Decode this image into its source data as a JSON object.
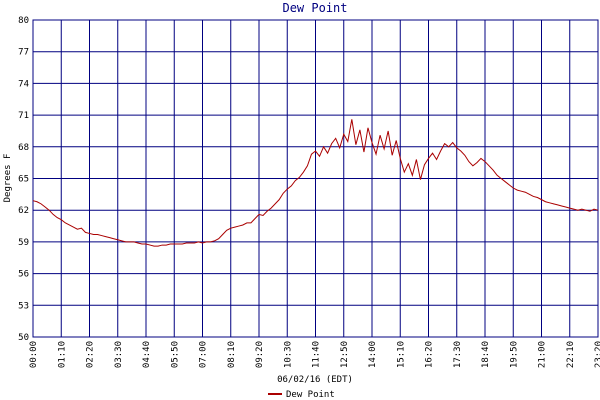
{
  "chart_data": {
    "type": "line",
    "title": "Dew Point",
    "xlabel": "06/02/16 (EDT)",
    "ylabel": "Degrees F",
    "x": [
      0,
      10,
      20,
      30,
      40,
      50,
      60,
      70,
      80,
      90,
      100,
      110,
      120,
      130,
      140,
      150,
      160,
      170,
      180,
      190,
      200,
      210,
      220,
      230,
      240,
      250,
      260,
      270,
      280,
      290,
      300,
      310,
      320,
      330,
      340,
      350,
      360,
      370,
      380,
      390,
      400,
      410,
      420,
      430,
      440,
      450,
      460,
      470,
      480,
      490,
      500,
      510,
      520,
      530,
      540,
      550,
      560,
      570,
      580,
      590,
      600,
      610,
      620,
      630,
      640,
      650,
      660,
      670,
      680,
      690,
      700,
      710,
      720,
      730,
      740,
      750,
      760,
      770,
      780,
      790,
      800,
      810,
      820,
      830,
      840,
      850,
      860,
      870,
      880,
      890,
      900,
      910,
      920,
      930,
      940,
      950,
      960,
      970,
      980,
      990,
      1000,
      1010,
      1020,
      1030,
      1040,
      1050,
      1060,
      1070,
      1080,
      1090,
      1100,
      1110,
      1120,
      1130,
      1140,
      1150,
      1160,
      1170,
      1180,
      1190,
      1200,
      1210,
      1220,
      1230,
      1240,
      1250,
      1260,
      1270,
      1280,
      1290,
      1300,
      1310,
      1320,
      1330,
      1340,
      1350,
      1360,
      1370,
      1380,
      1390,
      1400
    ],
    "series": [
      {
        "name": "Dew Point",
        "color": "#aa0000",
        "values": [
          62.9,
          62.8,
          62.6,
          62.3,
          62.0,
          61.6,
          61.3,
          61.1,
          60.8,
          60.6,
          60.4,
          60.2,
          60.3,
          59.9,
          59.8,
          59.7,
          59.7,
          59.6,
          59.5,
          59.4,
          59.3,
          59.2,
          59.1,
          59.0,
          59.0,
          59.0,
          58.9,
          58.8,
          58.8,
          58.7,
          58.6,
          58.6,
          58.7,
          58.7,
          58.8,
          58.8,
          58.8,
          58.8,
          58.9,
          58.9,
          58.9,
          59.0,
          58.9,
          59.0,
          59.0,
          59.1,
          59.3,
          59.7,
          60.1,
          60.3,
          60.4,
          60.5,
          60.6,
          60.8,
          60.8,
          61.2,
          61.6,
          61.5,
          61.9,
          62.2,
          62.6,
          63.0,
          63.6,
          64.0,
          64.3,
          64.8,
          65.1,
          65.6,
          66.2,
          67.3,
          67.6,
          67.1,
          68.0,
          67.4,
          68.3,
          68.8,
          67.9,
          69.2,
          68.5,
          70.6,
          68.2,
          69.6,
          67.5,
          69.8,
          68.4,
          67.3,
          69.1,
          67.8,
          69.5,
          67.2,
          68.6,
          66.9,
          65.6,
          66.4,
          65.3,
          66.8,
          64.9,
          66.3,
          66.9,
          67.4,
          66.8,
          67.6,
          68.3,
          68.0,
          68.4,
          67.9,
          67.6,
          67.2,
          66.6,
          66.2,
          66.5,
          66.9,
          66.6,
          66.2,
          65.8,
          65.3,
          65.0,
          64.7,
          64.4,
          64.1,
          63.9,
          63.8,
          63.7,
          63.5,
          63.3,
          63.2,
          63.0,
          62.8,
          62.7,
          62.6,
          62.5,
          62.4,
          62.3,
          62.2,
          62.1,
          62.0,
          62.1,
          62.0,
          61.9,
          62.1,
          62.0
        ]
      }
    ],
    "xlim": [
      0,
      1400
    ],
    "xticks": [
      {
        "value": 0,
        "label": "00:00"
      },
      {
        "value": 70,
        "label": "01:10"
      },
      {
        "value": 140,
        "label": "02:20"
      },
      {
        "value": 210,
        "label": "03:30"
      },
      {
        "value": 280,
        "label": "04:40"
      },
      {
        "value": 350,
        "label": "05:50"
      },
      {
        "value": 420,
        "label": "07:00"
      },
      {
        "value": 490,
        "label": "08:10"
      },
      {
        "value": 560,
        "label": "09:20"
      },
      {
        "value": 630,
        "label": "10:30"
      },
      {
        "value": 700,
        "label": "11:40"
      },
      {
        "value": 770,
        "label": "12:50"
      },
      {
        "value": 840,
        "label": "14:00"
      },
      {
        "value": 910,
        "label": "15:10"
      },
      {
        "value": 980,
        "label": "16:20"
      },
      {
        "value": 1050,
        "label": "17:30"
      },
      {
        "value": 1120,
        "label": "18:40"
      },
      {
        "value": 1190,
        "label": "19:50"
      },
      {
        "value": 1260,
        "label": "21:00"
      },
      {
        "value": 1330,
        "label": "22:10"
      },
      {
        "value": 1400,
        "label": "23:20"
      }
    ],
    "ylim": [
      50,
      80
    ],
    "yticks": [
      50,
      53,
      56,
      59,
      62,
      65,
      68,
      71,
      74,
      77,
      80
    ],
    "grid": true,
    "grid_color": "#000080"
  }
}
